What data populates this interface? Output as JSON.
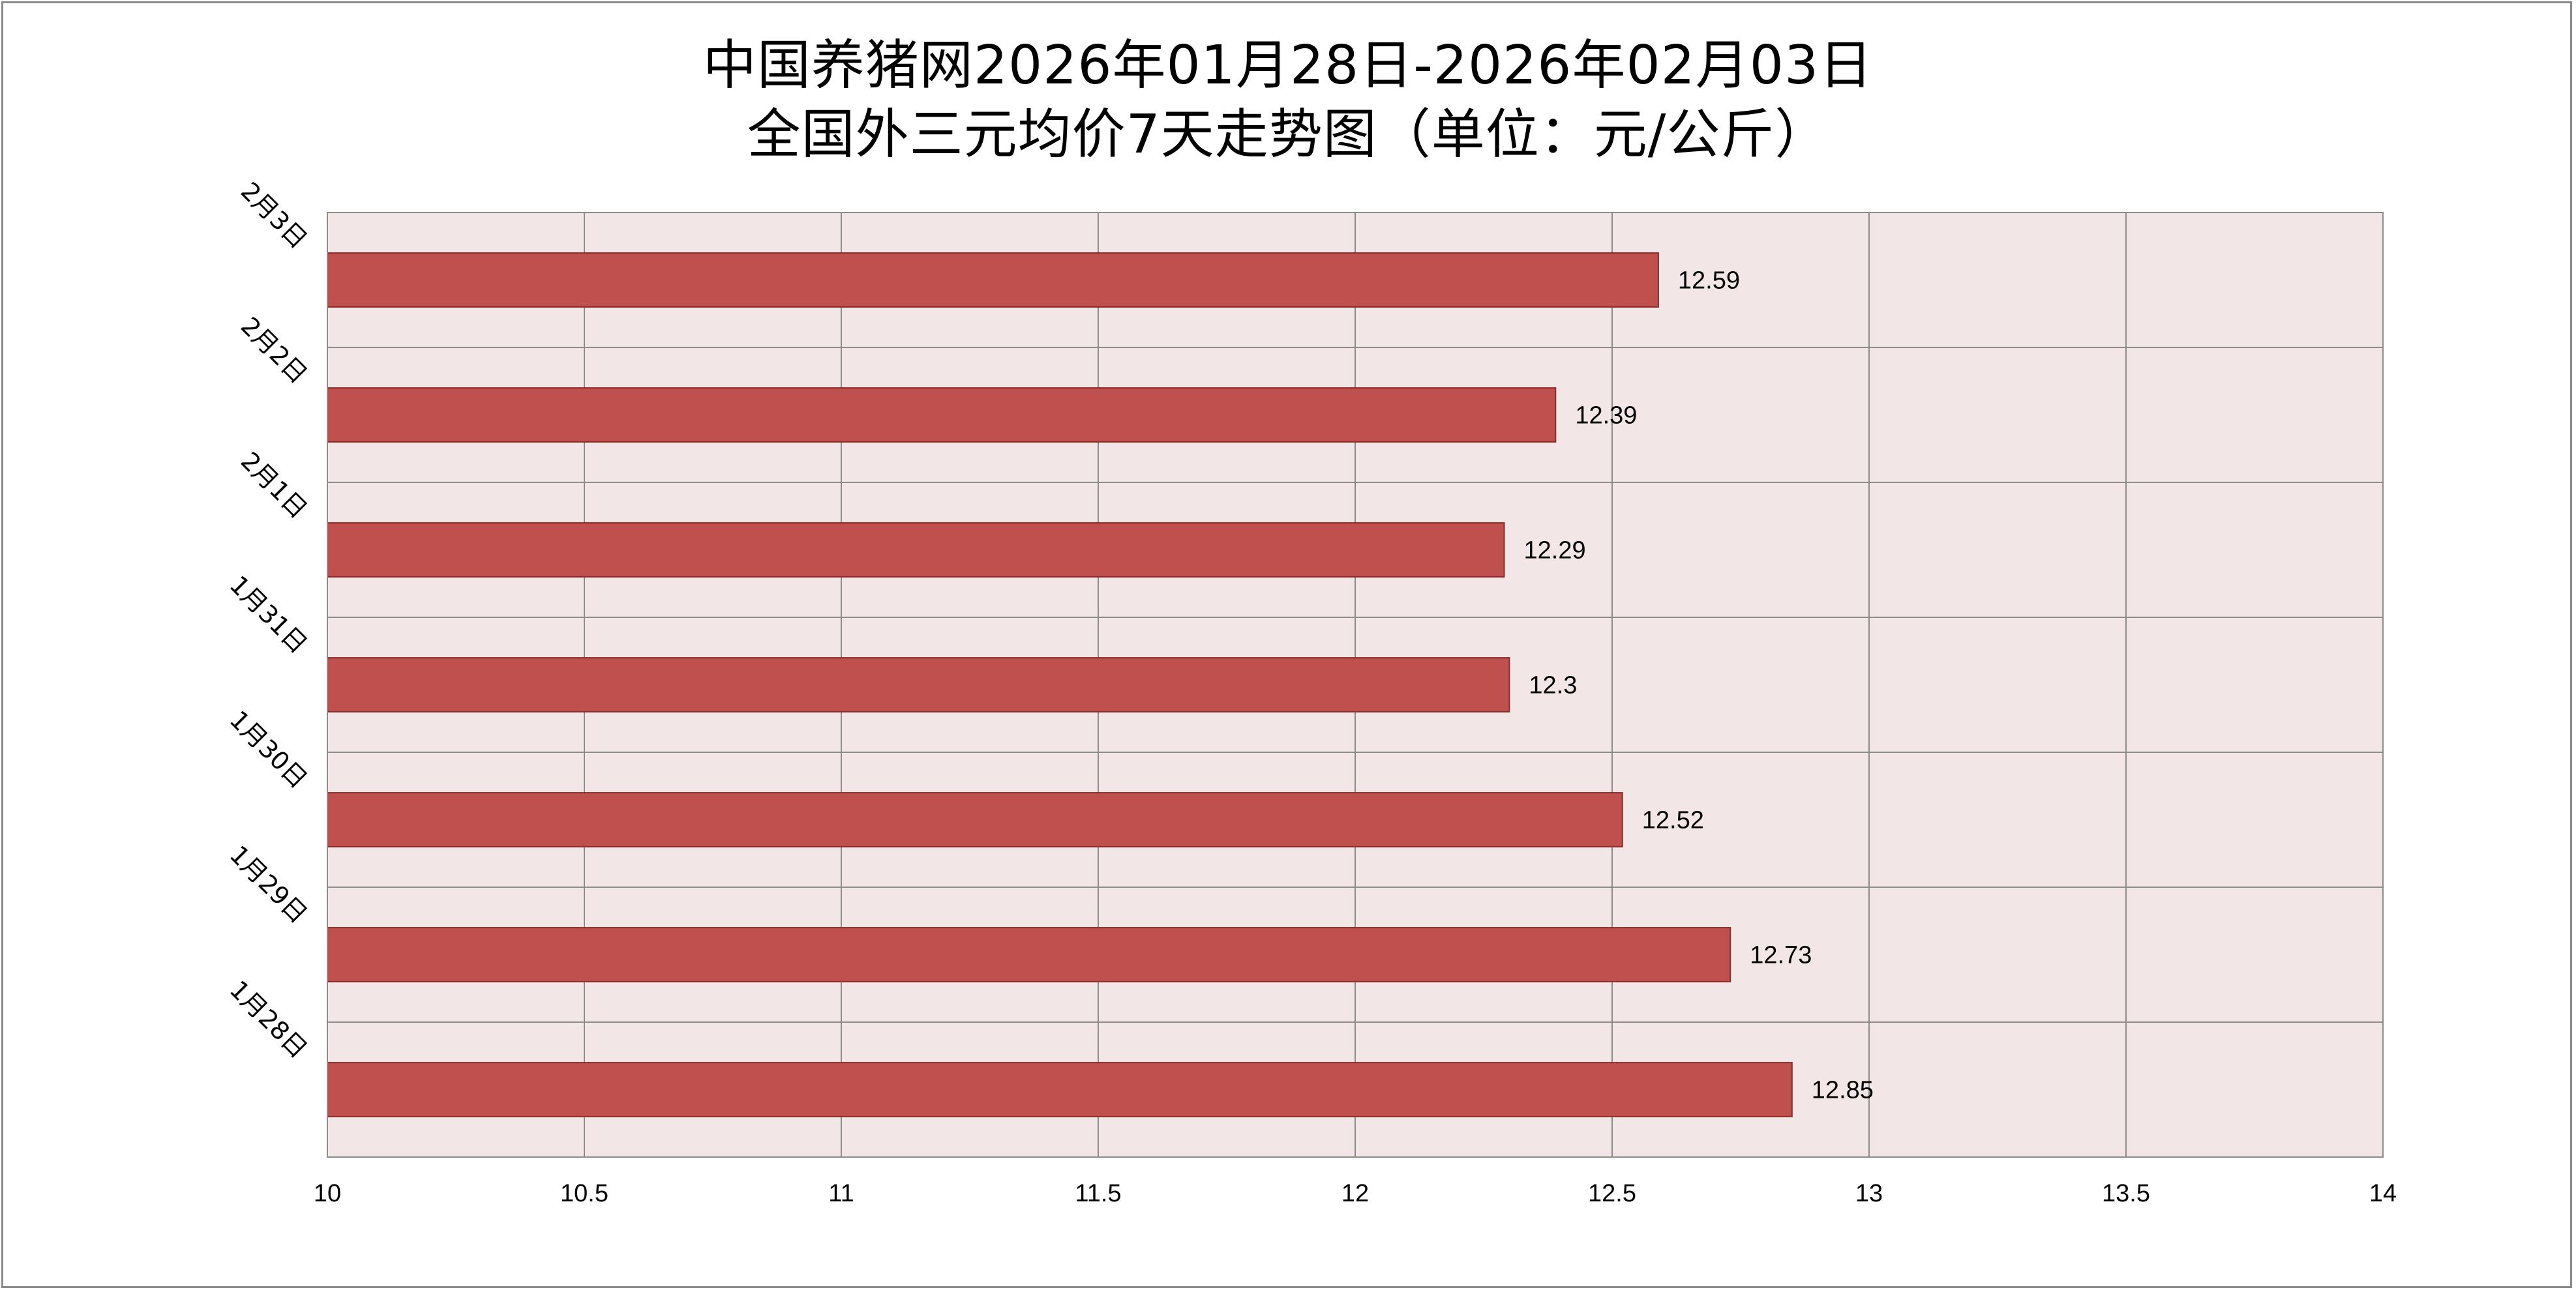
{
  "chart_data": {
    "type": "bar",
    "orientation": "horizontal",
    "title_line1": "中国养猪网2026年01月28日-2026年02月03日",
    "title_line2": "全国外三元均价7天走势图（单位：元/公斤）",
    "categories": [
      "2月3日",
      "2月2日",
      "2月1日",
      "1月31日",
      "1月30日",
      "1月29日",
      "1月28日"
    ],
    "values": [
      12.59,
      12.39,
      12.29,
      12.3,
      12.52,
      12.73,
      12.85
    ],
    "value_labels": [
      "12.59",
      "12.39",
      "12.29",
      "12.3",
      "12.52",
      "12.73",
      "12.85"
    ],
    "xlim": [
      10,
      14
    ],
    "x_ticks": [
      "10",
      "10.5",
      "11",
      "11.5",
      "12",
      "12.5",
      "13",
      "13.5",
      "14"
    ],
    "grid": true,
    "legend": "none",
    "colors": {
      "bar_fill": "#c0504d",
      "bar_stroke": "#8c2b28",
      "plot_background": "#f2e6e6",
      "grid_line": "#8c8c8c"
    }
  }
}
